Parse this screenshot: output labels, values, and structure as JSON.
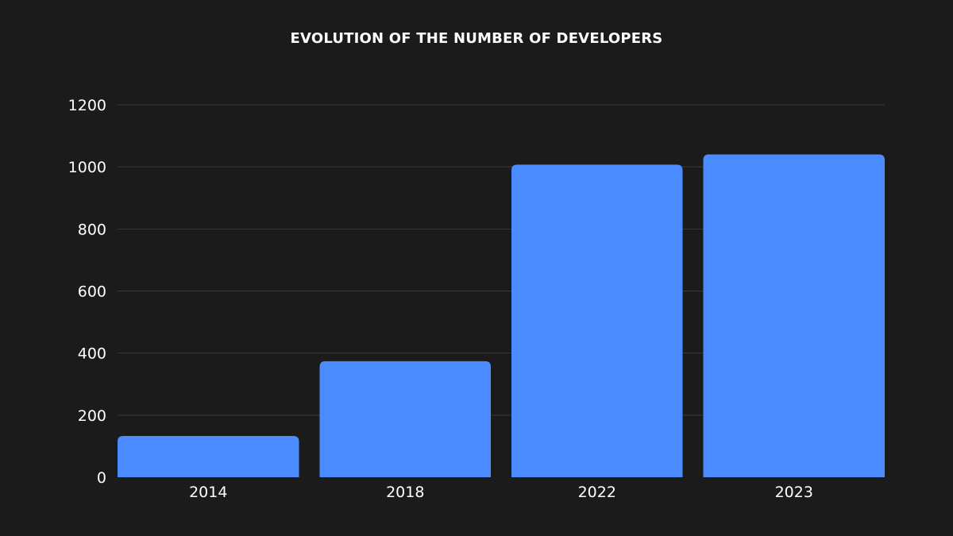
{
  "chart_data": {
    "type": "bar",
    "title": "EVOLUTION OF THE NUMBER OF DEVELOPERS",
    "categories": [
      "2014",
      "2018",
      "2022",
      "2023"
    ],
    "values": [
      133,
      374,
      1007,
      1040
    ],
    "xlabel": "",
    "ylabel": "",
    "ylim": [
      0,
      1200
    ],
    "yticks": [
      0,
      200,
      400,
      600,
      800,
      1000,
      1200
    ],
    "ytick_labels": [
      "0",
      "200",
      "400",
      "600",
      "800",
      "1000",
      "1200"
    ],
    "grid": true,
    "legend": "none"
  },
  "colors": {
    "background": "#1b1b1b",
    "bar": "#4a8cff",
    "grid": "#3a3a3a",
    "text": "#ffffff"
  }
}
